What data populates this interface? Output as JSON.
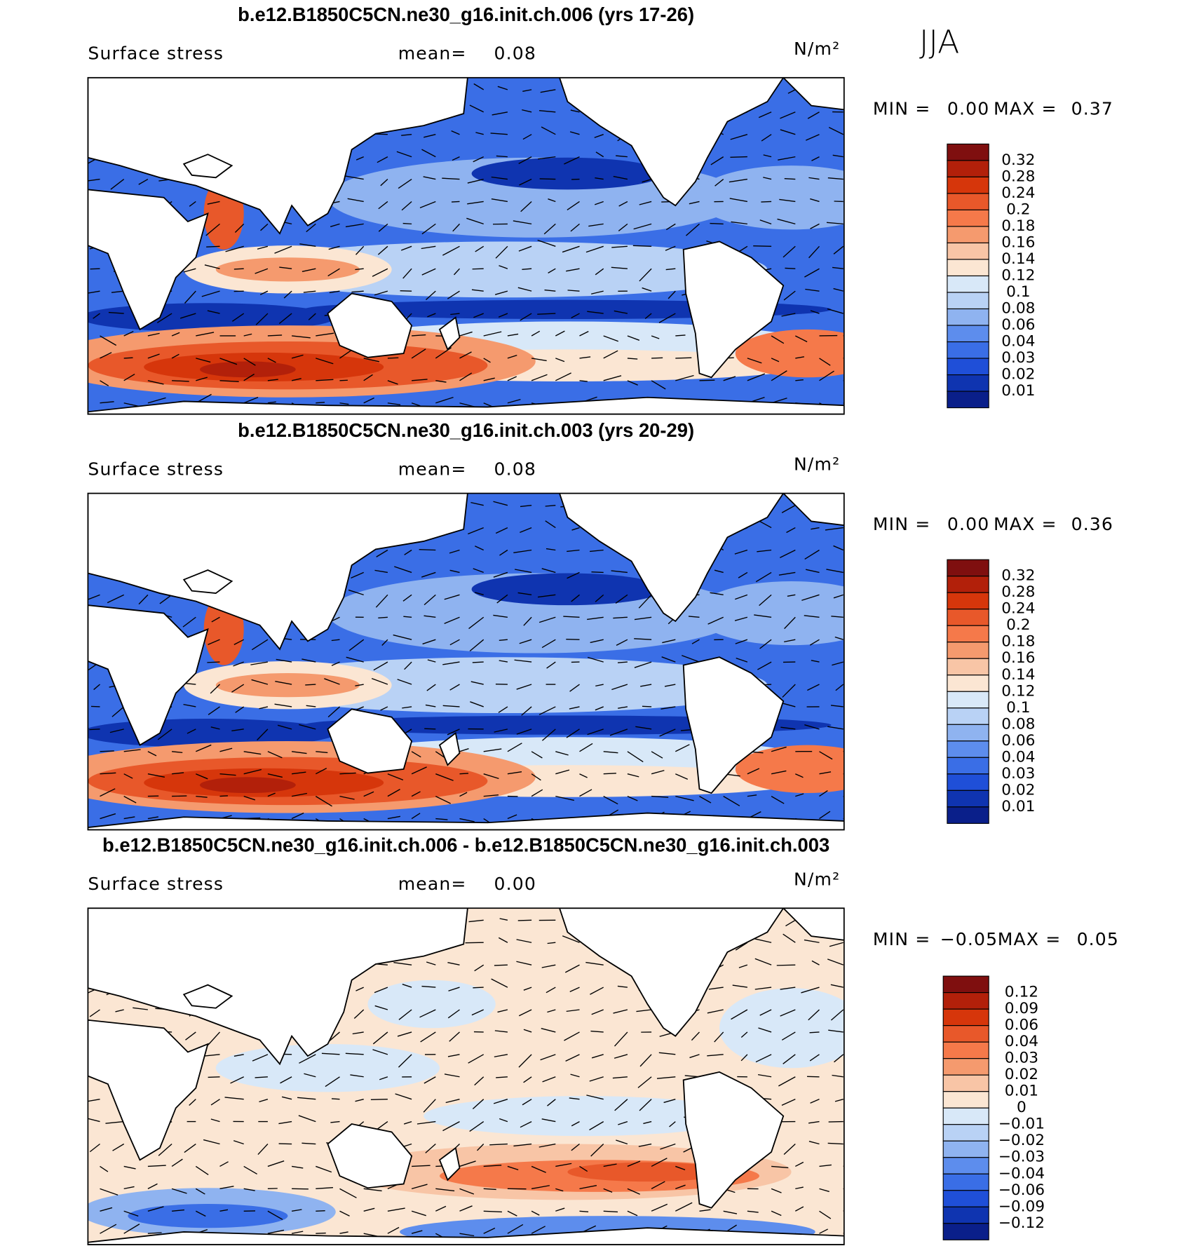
{
  "season": "JJA",
  "colorbar_colors": [
    "#7f0f0f",
    "#b2200a",
    "#d6360b",
    "#e8582a",
    "#f5794a",
    "#f59a6e",
    "#f8c5a6",
    "#fbe6d3",
    "#d8e8f8",
    "#b9d2f5",
    "#8fb3f0",
    "#5d8ded",
    "#3a6ee6",
    "#1f4fd8",
    "#0f34b0",
    "#0a1f8a"
  ],
  "panels": [
    {
      "title": "b.e12.B1850C5CN.ne30_g16.init.ch.006 (yrs 17-26)",
      "variable": "Surface stress",
      "mean_label": "mean=",
      "mean": "0.08",
      "units": "N/m²",
      "min_label": "MIN =",
      "min": "0.00",
      "max_label": "MAX =",
      "max": "0.37",
      "colorbar": [
        "0.32",
        "0.28",
        "0.24",
        "0.2",
        "0.18",
        "0.16",
        "0.14",
        "0.12",
        "0.1",
        "0.08",
        "0.06",
        "0.04",
        "0.03",
        "0.02",
        "0.01"
      ]
    },
    {
      "title": "b.e12.B1850C5CN.ne30_g16.init.ch.003 (yrs 20-29)",
      "variable": "Surface stress",
      "mean_label": "mean=",
      "mean": "0.08",
      "units": "N/m²",
      "min_label": "MIN =",
      "min": "0.00",
      "max_label": "MAX =",
      "max": "0.36",
      "colorbar": [
        "0.32",
        "0.28",
        "0.24",
        "0.2",
        "0.18",
        "0.16",
        "0.14",
        "0.12",
        "0.1",
        "0.08",
        "0.06",
        "0.04",
        "0.03",
        "0.02",
        "0.01"
      ]
    },
    {
      "title": "b.e12.B1850C5CN.ne30_g16.init.ch.006 - b.e12.B1850C5CN.ne30_g16.init.ch.003",
      "variable": "Surface stress",
      "mean_label": "mean=",
      "mean": "0.00",
      "units": "N/m²",
      "min_label": "MIN =",
      "min": "−0.05",
      "max_label": "MAX =",
      "max": "0.05",
      "colorbar": [
        "0.12",
        "0.09",
        "0.06",
        "0.04",
        "0.03",
        "0.02",
        "0.01",
        "0",
        "−0.01",
        "−0.02",
        "−0.03",
        "−0.04",
        "−0.06",
        "−0.09",
        "−0.12"
      ]
    }
  ]
}
